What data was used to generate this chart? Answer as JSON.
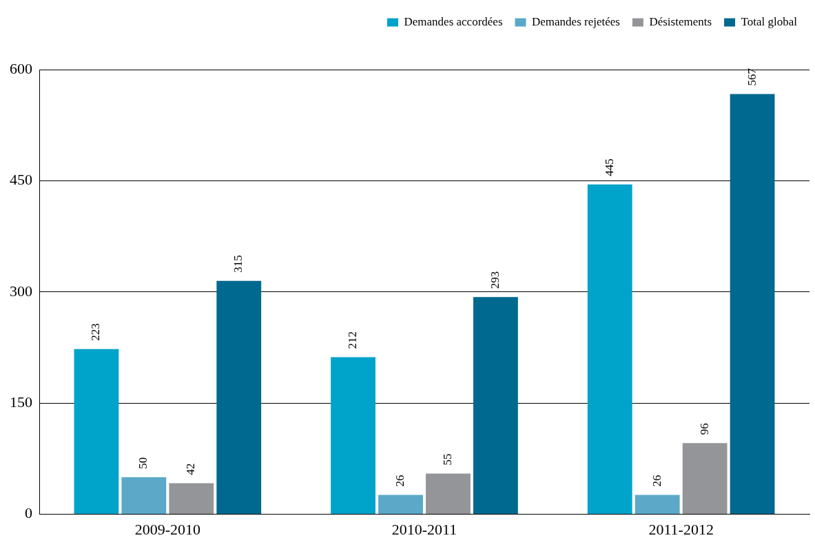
{
  "chart_data": {
    "type": "bar",
    "categories": [
      "2009-2010",
      "2010-2011",
      "2011-2012"
    ],
    "series": [
      {
        "name": "Demandes accordées",
        "color": "#00a3c9",
        "values": [
          223,
          212,
          445
        ]
      },
      {
        "name": "Demandes rejetées",
        "color": "#5ba8c9",
        "values": [
          50,
          26,
          26
        ]
      },
      {
        "name": "Désistements",
        "color": "#939598",
        "values": [
          42,
          55,
          96
        ]
      },
      {
        "name": "Total global",
        "color": "#006990",
        "values": [
          315,
          293,
          567
        ]
      }
    ],
    "ylim": [
      0,
      600
    ],
    "yticks": [
      0,
      150,
      300,
      450,
      600
    ],
    "grid": "y",
    "legend": "top right",
    "data_labels": true
  }
}
